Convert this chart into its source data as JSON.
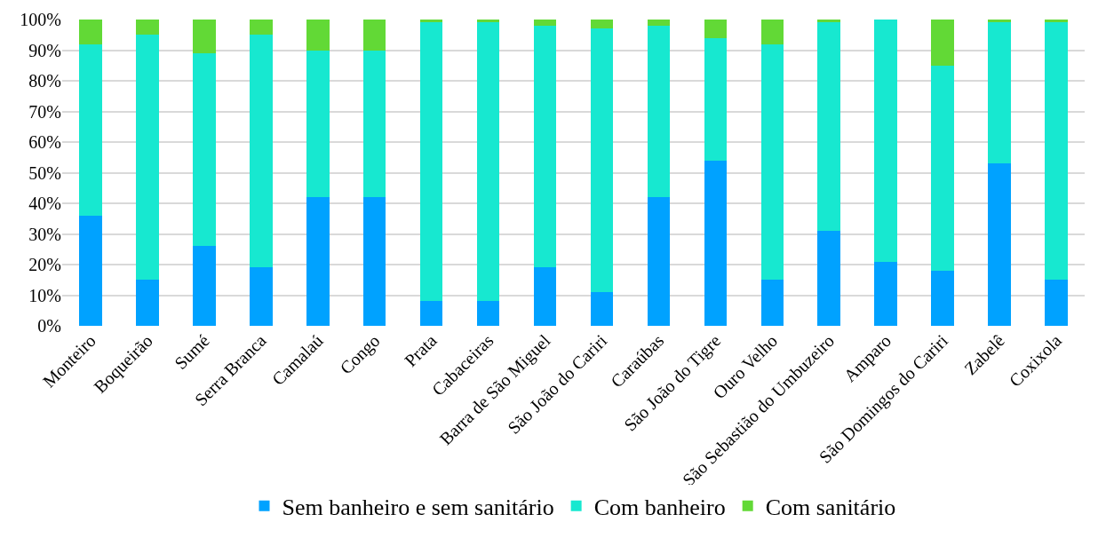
{
  "chart_data": {
    "type": "bar",
    "stacked": true,
    "categories": [
      "Monteiro",
      "Boqueirão",
      "Sumé",
      "Serra Branca",
      "Camalaú",
      "Congo",
      "Prata",
      "Cabaceiras",
      "Barra de São Miguel",
      "São João do Cariri",
      "Caraúbas",
      "São João do Tigre",
      "Ouro Velho",
      "São Sebastião do Umbuzeiro",
      "Amparo",
      "São Domingos do Cariri",
      "Zabelê",
      "Coxixola"
    ],
    "series": [
      {
        "name": "Sem banheiro e sem sanitário",
        "color": "#00a2ff",
        "values": [
          36,
          15,
          26,
          19,
          42,
          42,
          8,
          8,
          19,
          11,
          42,
          54,
          15,
          31,
          21,
          18,
          53,
          15
        ]
      },
      {
        "name": "Com banheiro",
        "color": "#17e8d0",
        "values": [
          56,
          80,
          63,
          76,
          48,
          48,
          91,
          91,
          79,
          86,
          56,
          40,
          77,
          68,
          79,
          67,
          46,
          84
        ]
      },
      {
        "name": "Com sanitário",
        "color": "#62d936",
        "values": [
          8,
          5,
          11,
          5,
          10,
          10,
          1,
          1,
          2,
          3,
          2,
          6,
          8,
          1,
          0,
          15,
          1,
          1
        ]
      }
    ],
    "ylim": [
      0,
      100
    ],
    "yticks": [
      {
        "value": 0,
        "label": "0%"
      },
      {
        "value": 10,
        "label": "10%"
      },
      {
        "value": 20,
        "label": "20%"
      },
      {
        "value": 30,
        "label": "30%"
      },
      {
        "value": 40,
        "label": "40%"
      },
      {
        "value": 50,
        "label": "50%"
      },
      {
        "value": 60,
        "label": "60%"
      },
      {
        "value": 70,
        "label": "70%"
      },
      {
        "value": 80,
        "label": "80%"
      },
      {
        "value": 90,
        "label": "90%"
      },
      {
        "value": 100,
        "label": "100%"
      }
    ],
    "grid": "y",
    "legend": "bottom"
  }
}
